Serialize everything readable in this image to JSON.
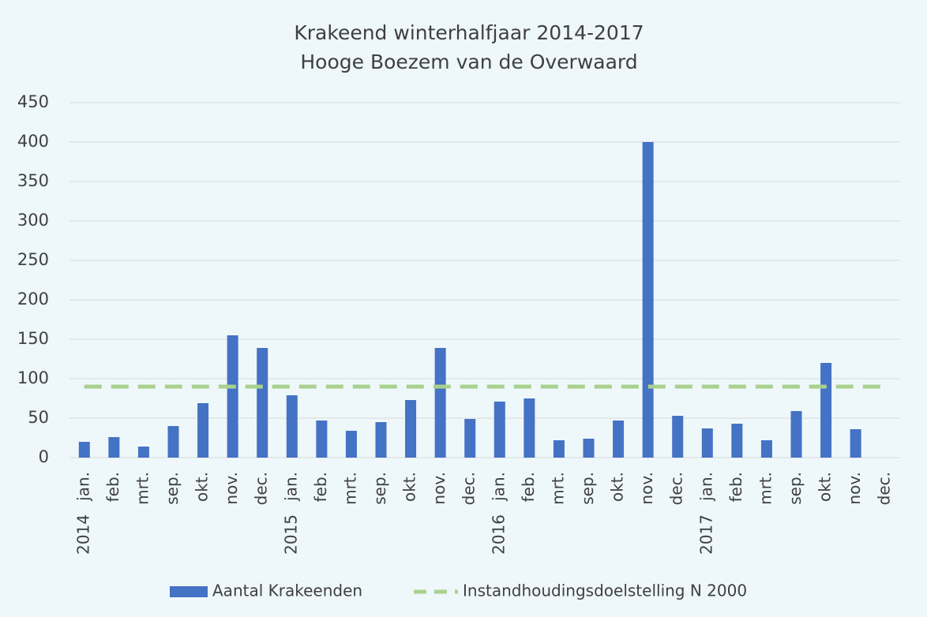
{
  "chart_data": {
    "type": "bar",
    "title": [
      "Krakeend winterhalfjaar 2014-2017",
      "Hooge Boezem van de Overwaard"
    ],
    "categories": [
      "jan.",
      "feb.",
      "mrt.",
      "sep.",
      "okt.",
      "nov.",
      "dec.",
      "jan.",
      "feb.",
      "mrt.",
      "sep.",
      "okt.",
      "nov.",
      "dec.",
      "jan.",
      "feb.",
      "mrt.",
      "sep.",
      "okt.",
      "nov.",
      "dec.",
      "jan.",
      "feb.",
      "mrt.",
      "sep.",
      "okt.",
      "nov.",
      "dec."
    ],
    "category_groups": [
      "2014",
      null,
      null,
      null,
      null,
      null,
      null,
      "2015",
      null,
      null,
      null,
      null,
      null,
      null,
      "2016",
      null,
      null,
      null,
      null,
      null,
      null,
      "2017",
      null,
      null,
      null,
      null,
      null,
      null
    ],
    "series": [
      {
        "name": "Aantal Krakeenden",
        "type": "bar",
        "color": "#4472c4",
        "values": [
          20,
          26,
          14,
          40,
          69,
          155,
          139,
          79,
          47,
          34,
          45,
          73,
          139,
          49,
          71,
          75,
          22,
          24,
          47,
          400,
          53,
          37,
          43,
          22,
          59,
          120,
          36,
          null
        ]
      },
      {
        "name": "Instandhoudingsdoelstelling N 2000",
        "type": "line",
        "dashed": true,
        "color": "#a9d18e",
        "values": [
          90,
          90,
          90,
          90,
          90,
          90,
          90,
          90,
          90,
          90,
          90,
          90,
          90,
          90,
          90,
          90,
          90,
          90,
          90,
          90,
          90,
          90,
          90,
          90,
          90,
          90,
          90,
          90
        ]
      }
    ],
    "ylim": [
      0,
      450
    ],
    "yticks": [
      0,
      50,
      100,
      150,
      200,
      250,
      300,
      350,
      400,
      450
    ],
    "grid": true,
    "legend": "bottom"
  }
}
